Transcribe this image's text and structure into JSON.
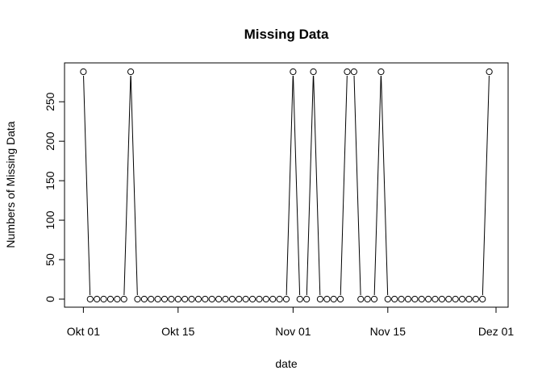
{
  "chart_data": {
    "type": "line",
    "title": "Missing Data",
    "xlabel": "date",
    "ylabel": "Numbers of Missing Data",
    "x_start": "2012-10-01",
    "x_end": "2012-11-30",
    "xlim": [
      "2012-09-30",
      "2012-12-01"
    ],
    "ylim": [
      0,
      288
    ],
    "x_ticks": [
      {
        "date": "2012-10-01",
        "label": "Okt 01"
      },
      {
        "date": "2012-10-15",
        "label": "Okt 15"
      },
      {
        "date": "2012-11-01",
        "label": "Nov 01"
      },
      {
        "date": "2012-11-15",
        "label": "Nov 15"
      },
      {
        "date": "2012-12-01",
        "label": "Dez 01"
      }
    ],
    "y_ticks": [
      0,
      50,
      100,
      150,
      200,
      250
    ],
    "values": [
      288,
      0,
      0,
      0,
      0,
      0,
      0,
      288,
      0,
      0,
      0,
      0,
      0,
      0,
      0,
      0,
      0,
      0,
      0,
      0,
      0,
      0,
      0,
      0,
      0,
      0,
      0,
      0,
      0,
      0,
      0,
      288,
      0,
      0,
      288,
      0,
      0,
      0,
      0,
      288,
      288,
      0,
      0,
      0,
      288,
      0,
      0,
      0,
      0,
      0,
      0,
      0,
      0,
      0,
      0,
      0,
      0,
      0,
      0,
      0,
      288
    ],
    "line_color": "#000000",
    "point_style": "open-circle",
    "grid": false,
    "legend": "none"
  }
}
